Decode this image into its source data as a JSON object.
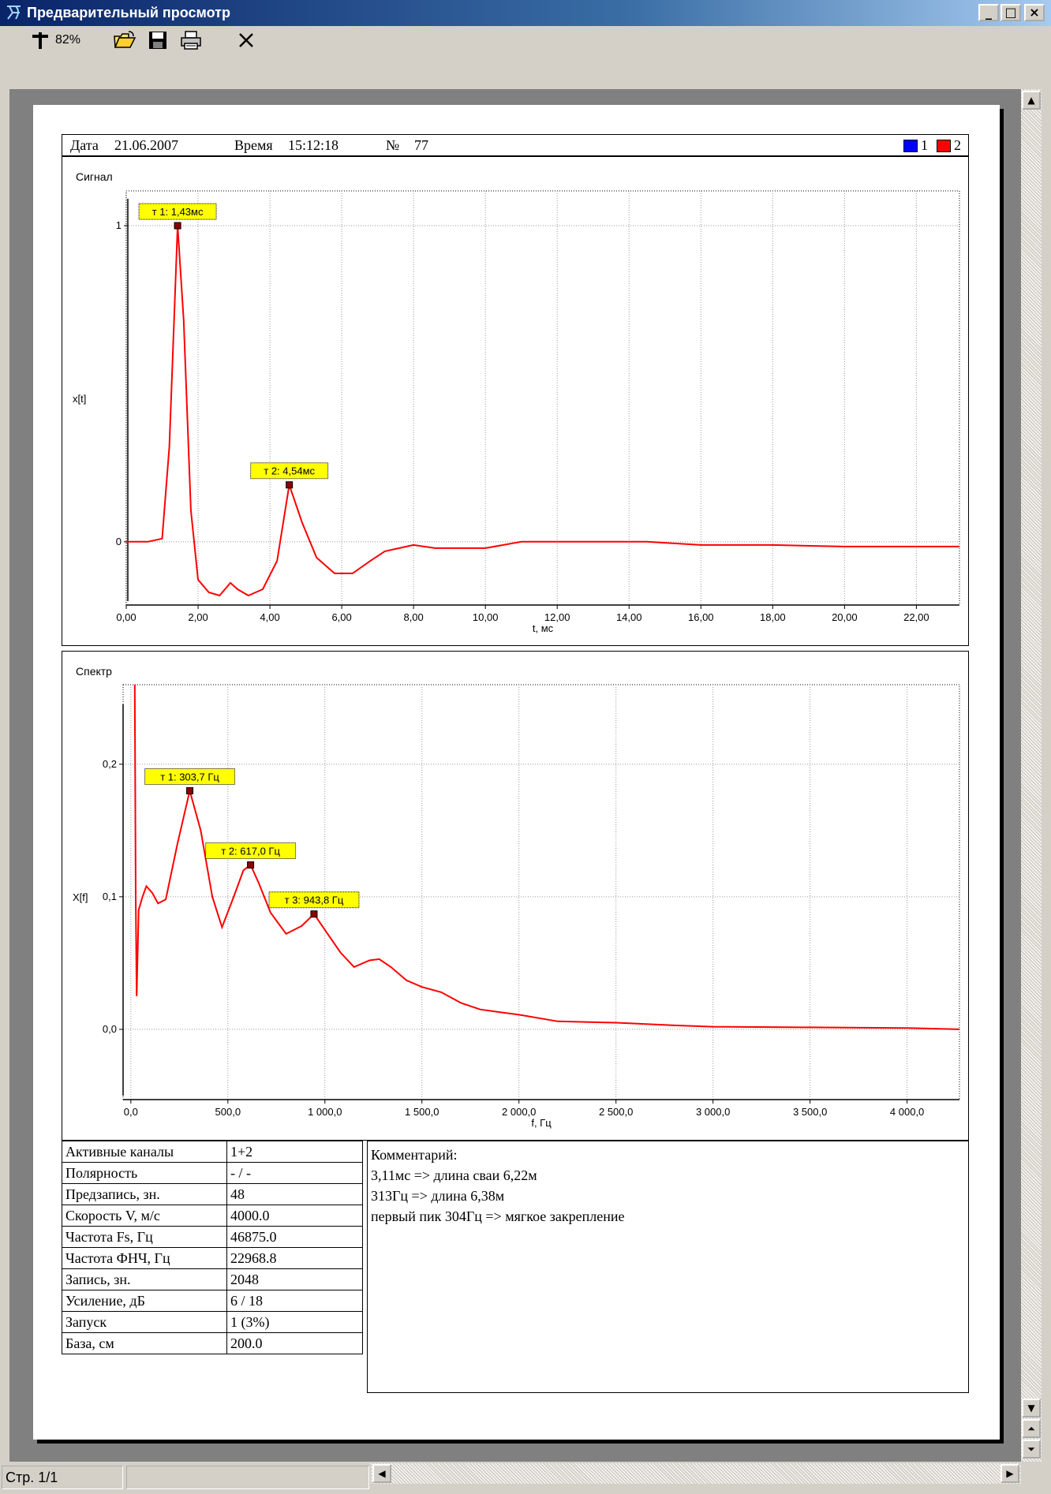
{
  "window": {
    "title": "Предварительный просмотр"
  },
  "toolbar": {
    "zoom": "82%"
  },
  "header": {
    "date_label": "Дата",
    "date": "21.06.2007",
    "time_label": "Время",
    "time": "15:12:18",
    "num_label": "№",
    "num": "77",
    "legend": [
      {
        "label": "1",
        "color": "#0000ff"
      },
      {
        "label": "2",
        "color": "#ff0000"
      }
    ]
  },
  "status": {
    "page": "Стр. 1/1"
  },
  "chart_data": [
    {
      "type": "line",
      "title": "Сигнал",
      "xlabel": "t, мс",
      "ylabel": "x[t]",
      "xlim": [
        0,
        23.2
      ],
      "ylim": [
        -0.2,
        1.11
      ],
      "xticks": [
        "0,00",
        "2,00",
        "4,00",
        "6,00",
        "8,00",
        "10,00",
        "12,00",
        "14,00",
        "16,00",
        "18,00",
        "20,00",
        "22,00"
      ],
      "yticks": [
        "0",
        "1"
      ],
      "series": [
        {
          "color": "#ff0000",
          "points": [
            [
              0,
              0
            ],
            [
              0.6,
              0
            ],
            [
              1.0,
              0.01
            ],
            [
              1.2,
              0.3
            ],
            [
              1.43,
              1.0
            ],
            [
              1.6,
              0.7
            ],
            [
              1.8,
              0.1
            ],
            [
              2.0,
              -0.12
            ],
            [
              2.3,
              -0.16
            ],
            [
              2.6,
              -0.17
            ],
            [
              2.9,
              -0.13
            ],
            [
              3.1,
              -0.15
            ],
            [
              3.4,
              -0.17
            ],
            [
              3.8,
              -0.15
            ],
            [
              4.2,
              -0.06
            ],
            [
              4.54,
              0.18
            ],
            [
              4.9,
              0.06
            ],
            [
              5.3,
              -0.05
            ],
            [
              5.8,
              -0.1
            ],
            [
              6.3,
              -0.1
            ],
            [
              6.8,
              -0.06
            ],
            [
              7.2,
              -0.03
            ],
            [
              7.6,
              -0.02
            ],
            [
              8.0,
              -0.01
            ],
            [
              8.6,
              -0.02
            ],
            [
              10.0,
              -0.02
            ],
            [
              11.0,
              0
            ],
            [
              13.5,
              0
            ],
            [
              14.5,
              0
            ],
            [
              16.0,
              -0.01
            ],
            [
              18.0,
              -0.01
            ],
            [
              20.0,
              -0.015
            ],
            [
              23.2,
              -0.015
            ]
          ]
        }
      ],
      "markers": [
        {
          "label": "т 1: 1,43мс",
          "x": 1.43,
          "y": 1.0
        },
        {
          "label": "т 2: 4,54мс",
          "x": 4.54,
          "y": 0.18
        }
      ]
    },
    {
      "type": "line",
      "title": "Спектр",
      "xlabel": "f, Гц",
      "ylabel": "X[f]",
      "xlim": [
        -40,
        4270
      ],
      "ylim": [
        -0.053,
        0.26
      ],
      "xticks": [
        "0,0",
        "500,0",
        "1 000,0",
        "1 500,0",
        "2 000,0",
        "2 500,0",
        "3 000,0",
        "3 500,0",
        "4 000,0"
      ],
      "yticks": [
        "0,0",
        "0,1",
        "0,2"
      ],
      "series": [
        {
          "color": "#ff0000",
          "points": [
            [
              20,
              0.26
            ],
            [
              25,
              0.1
            ],
            [
              30,
              0.025
            ],
            [
              40,
              0.09
            ],
            [
              60,
              0.1
            ],
            [
              80,
              0.108
            ],
            [
              110,
              0.103
            ],
            [
              140,
              0.095
            ],
            [
              180,
              0.098
            ],
            [
              240,
              0.14
            ],
            [
              303.7,
              0.18
            ],
            [
              360,
              0.15
            ],
            [
              420,
              0.1
            ],
            [
              470,
              0.077
            ],
            [
              530,
              0.1
            ],
            [
              580,
              0.12
            ],
            [
              617,
              0.124
            ],
            [
              660,
              0.11
            ],
            [
              720,
              0.088
            ],
            [
              800,
              0.072
            ],
            [
              880,
              0.078
            ],
            [
              943.8,
              0.087
            ],
            [
              1000,
              0.075
            ],
            [
              1080,
              0.058
            ],
            [
              1150,
              0.047
            ],
            [
              1230,
              0.052
            ],
            [
              1280,
              0.053
            ],
            [
              1340,
              0.047
            ],
            [
              1420,
              0.037
            ],
            [
              1500,
              0.032
            ],
            [
              1600,
              0.028
            ],
            [
              1700,
              0.02
            ],
            [
              1800,
              0.015
            ],
            [
              1900,
              0.013
            ],
            [
              2000,
              0.011
            ],
            [
              2200,
              0.006
            ],
            [
              2500,
              0.005
            ],
            [
              2800,
              0.003
            ],
            [
              3000,
              0.002
            ],
            [
              3500,
              0.0015
            ],
            [
              4000,
              0.001
            ],
            [
              4270,
              0
            ]
          ]
        }
      ],
      "markers": [
        {
          "label": "т 1: 303,7 Гц",
          "x": 303.7,
          "y": 0.18
        },
        {
          "label": "т 2: 617,0 Гц",
          "x": 617,
          "y": 0.124
        },
        {
          "label": "т 3: 943,8 Гц",
          "x": 943.8,
          "y": 0.087
        }
      ]
    }
  ],
  "params": [
    {
      "name": "Активные каналы",
      "value": "1+2"
    },
    {
      "name": "Полярность",
      "value": "- / -"
    },
    {
      "name": "Предзапись, зн.",
      "value": "48"
    },
    {
      "name": "Скорость V, м/с",
      "value": "4000.0"
    },
    {
      "name": "Частота Fs, Гц",
      "value": "46875.0"
    },
    {
      "name": "Частота ФНЧ, Гц",
      "value": "22968.8"
    },
    {
      "name": "Запись, зн.",
      "value": "2048"
    },
    {
      "name": "Усиление, дБ",
      "value": "6 / 18"
    },
    {
      "name": "Запуск",
      "value": "1 (3%)"
    },
    {
      "name": "База, см",
      "value": "200.0"
    }
  ],
  "comment": {
    "title": "Комментарий:",
    "lines": [
      "3,11мс => длина сваи 6,22м",
      "313Гц => длина 6,38м",
      "первый пик 304Гц => мягкое закрепление"
    ]
  }
}
